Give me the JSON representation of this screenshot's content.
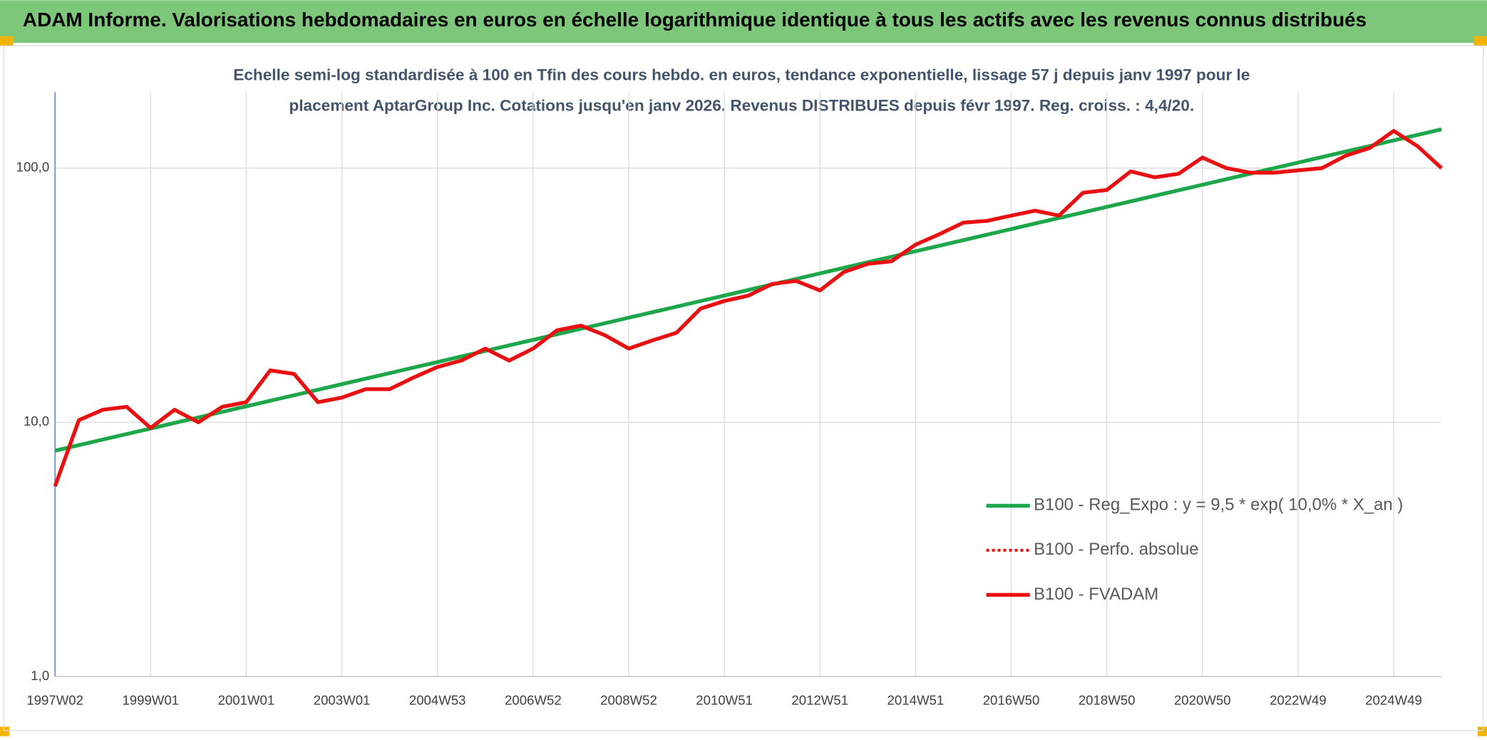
{
  "page_title": "ADAM Informe. Valorisations hebdomadaires en euros en échelle logarithmique identique à tous les actifs avec les revenus connus distribués",
  "chart_data": {
    "type": "line",
    "title": [
      "Echelle semi-log standardisée à 100 en Tfin des cours hebdo. en euros, tendance exponentielle, lissage 57 j depuis janv 1997 pour le",
      "placement AptarGroup Inc. Cotations jusqu'en janv 2026. Revenus DISTRIBUES depuis févr 1997. Reg. croiss. : 4,4/20."
    ],
    "log_scale": true,
    "grid": true,
    "legend": "lower right",
    "ylim": [
      1,
      200
    ],
    "yticks": [
      {
        "value": 1,
        "label": "1,0"
      },
      {
        "value": 10,
        "label": "10,0"
      },
      {
        "value": 100,
        "label": "100,0"
      }
    ],
    "categories": [
      "1997W02",
      null,
      null,
      null,
      "1999W01",
      null,
      null,
      null,
      "2001W01",
      null,
      null,
      null,
      "2003W01",
      null,
      null,
      null,
      "2004W53",
      null,
      null,
      null,
      "2006W52",
      null,
      null,
      null,
      "2008W52",
      null,
      null,
      null,
      "2010W51",
      null,
      null,
      null,
      "2012W51",
      null,
      null,
      null,
      "2014W51",
      null,
      null,
      null,
      "2016W50",
      null,
      null,
      null,
      "2018W50",
      null,
      null,
      null,
      "2020W50",
      null,
      null,
      null,
      "2022W49",
      null,
      null,
      null,
      "2024W49",
      null,
      null
    ],
    "series": [
      {
        "name": "B100 - Reg_Expo : y = 9,5 * exp( 10,0% *  X_an )",
        "color": "#1ea64a",
        "style": "solid",
        "values": [
          7.73,
          8.13,
          8.55,
          8.99,
          9.45,
          9.94,
          10.45,
          10.99,
          11.55,
          12.15,
          12.77,
          13.43,
          14.12,
          14.85,
          15.61,
          16.42,
          17.26,
          18.15,
          19.08,
          20.07,
          21.1,
          22.19,
          23.33,
          24.53,
          25.79,
          27.12,
          28.51,
          29.98,
          31.52,
          33.14,
          34.85,
          36.64,
          38.53,
          40.51,
          42.6,
          44.79,
          47.09,
          49.52,
          52.07,
          54.75,
          57.56,
          60.53,
          63.64,
          66.92,
          70.36,
          73.98,
          77.79,
          81.79,
          86.0,
          90.43,
          95.08,
          99.98,
          105.1,
          110.5,
          116.2,
          122.2,
          128.5,
          135.1,
          142.1
        ]
      },
      {
        "name": "B100 - Perfo. absolue",
        "color": "#e81010",
        "style": "dotted",
        "values": [
          5.6,
          10.2,
          11.2,
          11.5,
          9.5,
          11.2,
          10.0,
          11.5,
          12.0,
          16.0,
          15.5,
          12.0,
          12.5,
          13.5,
          13.5,
          15.0,
          16.5,
          17.5,
          19.5,
          17.5,
          19.5,
          23,
          24,
          22,
          19.5,
          21,
          22.5,
          28,
          30,
          31.5,
          35,
          36,
          33,
          39,
          42,
          43,
          50,
          55,
          61,
          62,
          65,
          68,
          65,
          80,
          82,
          97,
          92,
          95,
          110,
          100,
          96,
          96,
          98,
          100,
          112,
          120,
          140,
          122,
          100
        ]
      },
      {
        "name": "B100 - FVADAM",
        "color": "#e81010",
        "style": "solid",
        "values": [
          5.6,
          10.2,
          11.2,
          11.5,
          9.5,
          11.2,
          10.0,
          11.5,
          12.0,
          16.0,
          15.5,
          12.0,
          12.5,
          13.5,
          13.5,
          15.0,
          16.5,
          17.5,
          19.5,
          17.5,
          19.5,
          23,
          24,
          22,
          19.5,
          21,
          22.5,
          28,
          30,
          31.5,
          35,
          36,
          33,
          39,
          42,
          43,
          50,
          55,
          61,
          62,
          65,
          68,
          65,
          80,
          82,
          97,
          92,
          95,
          110,
          100,
          96,
          96,
          98,
          100,
          112,
          120,
          140,
          122,
          100
        ]
      }
    ]
  }
}
